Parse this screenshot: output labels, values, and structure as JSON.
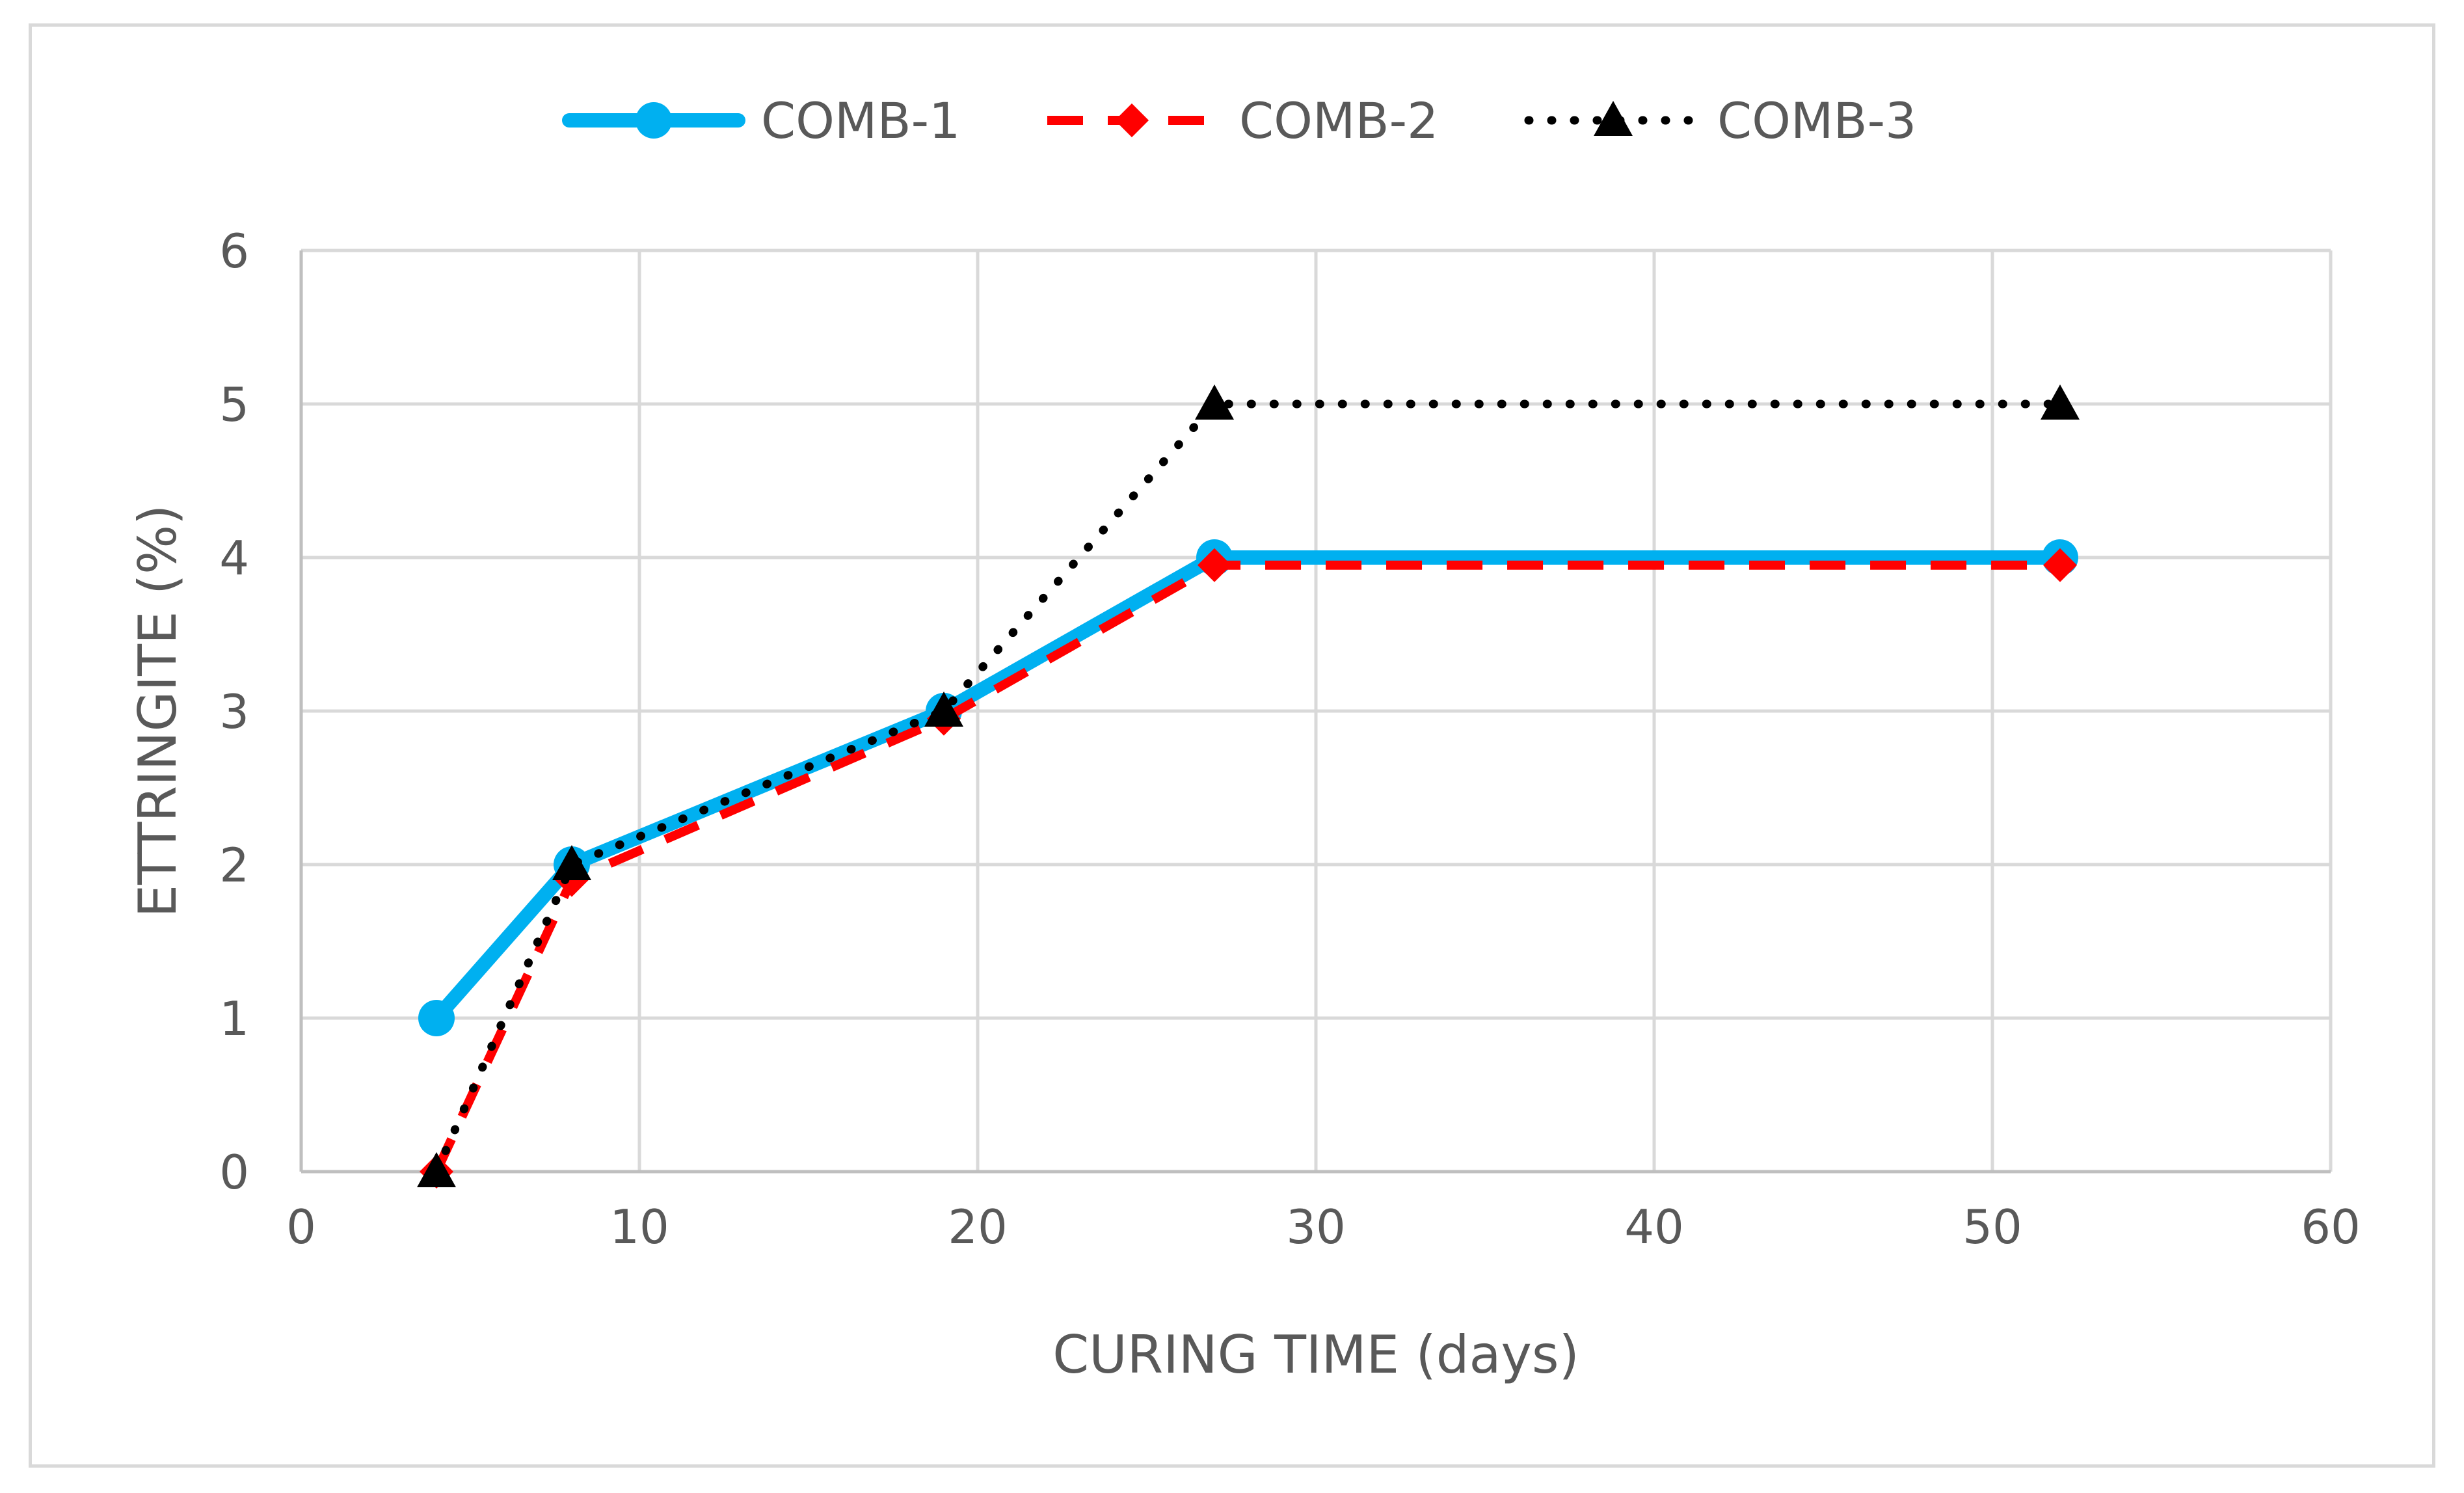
{
  "chart_data": {
    "type": "line",
    "title": "",
    "xlabel": "CURING TIME (days)",
    "ylabel": "ETTRINGITE (%)",
    "xlim": [
      0,
      60
    ],
    "ylim": [
      0,
      6
    ],
    "xticks": [
      0,
      10,
      20,
      30,
      40,
      50,
      60
    ],
    "yticks": [
      0,
      1,
      2,
      3,
      4,
      5,
      6
    ],
    "grid": true,
    "legend_position": "top",
    "series": [
      {
        "name": "COMB-1",
        "color": "#00b0f0",
        "line_style": "solid",
        "marker": "circle",
        "x": [
          4,
          8,
          19,
          27,
          52
        ],
        "y": [
          1,
          2,
          3,
          4,
          4
        ]
      },
      {
        "name": "COMB-2",
        "color": "#ff0000",
        "line_style": "dashed",
        "marker": "diamond",
        "x": [
          4,
          8,
          19,
          27,
          52
        ],
        "y": [
          0,
          1.9,
          2.95,
          3.95,
          3.95
        ]
      },
      {
        "name": "COMB-3",
        "color": "#000000",
        "line_style": "dotted",
        "marker": "triangle",
        "x": [
          4,
          8,
          19,
          27,
          52
        ],
        "y": [
          0,
          2,
          3,
          5,
          5
        ]
      }
    ]
  }
}
